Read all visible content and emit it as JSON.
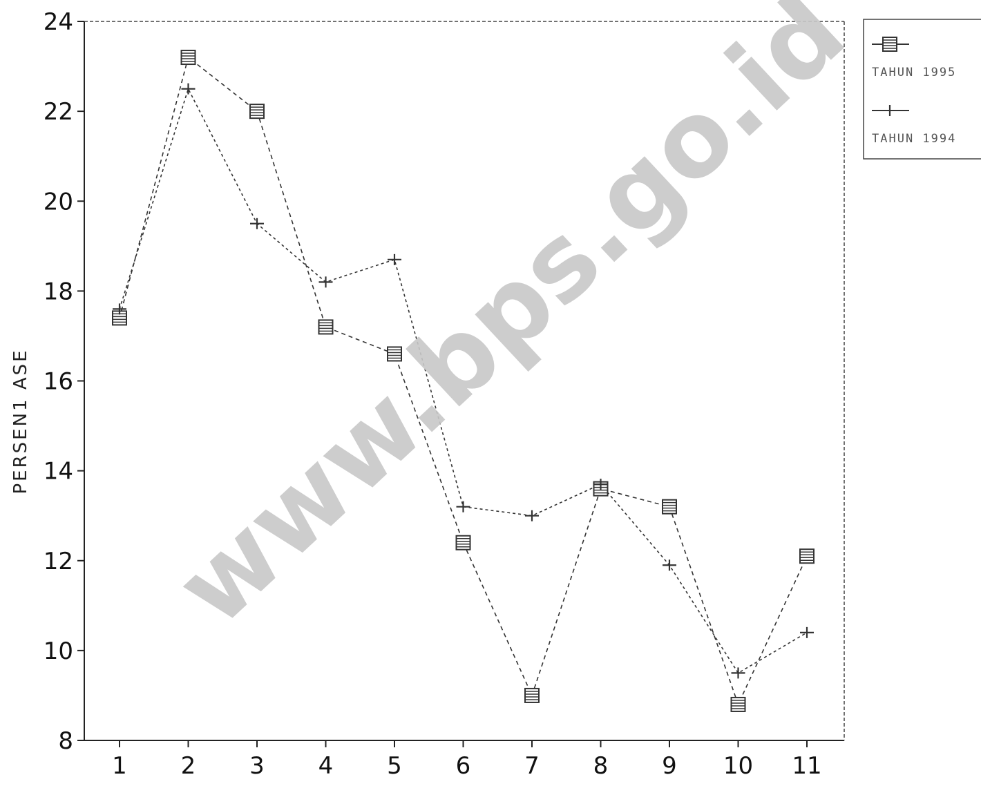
{
  "chart_data": {
    "type": "line",
    "title": "",
    "xlabel": "",
    "ylabel": "PERSEN1 ASE",
    "categories": [
      "1",
      "2",
      "3",
      "4",
      "5",
      "6",
      "7",
      "8",
      "9",
      "10",
      "11"
    ],
    "yticks": [
      "8",
      "10",
      "12",
      "14",
      "16",
      "18",
      "20",
      "22",
      "24"
    ],
    "ylim": [
      8,
      24
    ],
    "grid": false,
    "legend_position": "top-right",
    "series": [
      {
        "name": "TAHUN 1995",
        "marker": "square",
        "color": "#333333",
        "values": [
          17.4,
          23.2,
          22.0,
          17.2,
          16.6,
          12.4,
          9.0,
          13.6,
          13.2,
          8.8,
          12.1
        ]
      },
      {
        "name": "TAHUN 1994",
        "marker": "plus",
        "color": "#333333",
        "values": [
          17.6,
          22.5,
          19.5,
          18.2,
          18.7,
          13.2,
          13.0,
          13.7,
          11.9,
          9.5,
          10.4
        ]
      }
    ]
  },
  "watermark": "www.bps.go.id"
}
